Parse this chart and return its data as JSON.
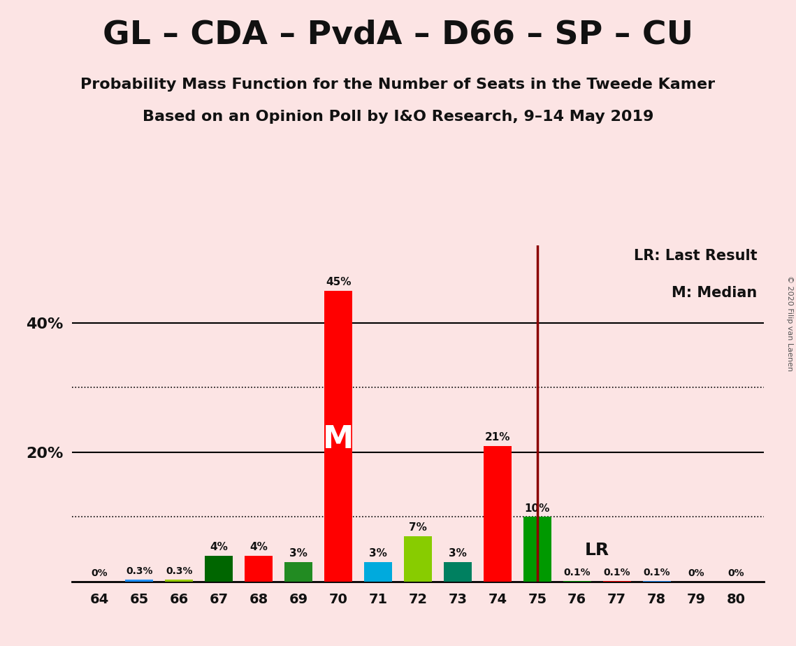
{
  "title": "GL – CDA – PvdA – D66 – SP – CU",
  "subtitle1": "Probability Mass Function for the Number of Seats in the Tweede Kamer",
  "subtitle2": "Based on an Opinion Poll by I&O Research, 9–14 May 2019",
  "copyright": "© 2020 Filip van Laenen",
  "legend_lr": "LR: Last Result",
  "legend_m": "M: Median",
  "seats": [
    64,
    65,
    66,
    67,
    68,
    69,
    70,
    71,
    72,
    73,
    74,
    75,
    76,
    77,
    78,
    79,
    80
  ],
  "values": [
    0.0,
    0.3,
    0.3,
    4.0,
    4.0,
    3.0,
    45.0,
    3.0,
    7.0,
    3.0,
    21.0,
    10.0,
    0.1,
    0.1,
    0.1,
    0.0,
    0.0
  ],
  "bar_colors": [
    "#ff0000",
    "#1e90ff",
    "#99cc00",
    "#006600",
    "#ff0000",
    "#228b22",
    "#ff0000",
    "#00aadd",
    "#88cc00",
    "#008060",
    "#ff0000",
    "#009900",
    "#009900",
    "#ff0000",
    "#1e90ff",
    "#88cc00",
    "#ff0000"
  ],
  "labels": [
    "0%",
    "0.3%",
    "0.3%",
    "4%",
    "4%",
    "3%",
    "45%",
    "3%",
    "7%",
    "3%",
    "21%",
    "10%",
    "0.1%",
    "0.1%",
    "0.1%",
    "0%",
    "0%"
  ],
  "median_seat": 70,
  "lr_seat": 75,
  "background_color": "#fce4e4",
  "ylim": [
    0,
    52
  ],
  "dotted_yticks": [
    10,
    30
  ],
  "solid_yticks": [
    20,
    40
  ]
}
